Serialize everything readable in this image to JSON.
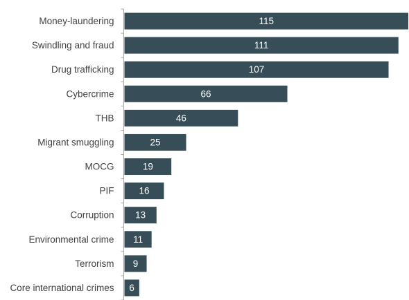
{
  "chart_data": {
    "type": "bar",
    "orientation": "horizontal",
    "categories": [
      "Money-laundering",
      "Swindling and fraud",
      "Drug trafficking",
      "Cybercrime",
      "THB",
      "Migrant smuggling",
      "MOCG",
      "PIF",
      "Corruption",
      "Environmental crime",
      "Terrorism",
      "Core international crimes"
    ],
    "values": [
      115,
      111,
      107,
      66,
      46,
      25,
      19,
      16,
      13,
      11,
      9,
      6
    ],
    "title": "",
    "xlabel": "",
    "ylabel": "",
    "xlim": [
      0,
      115
    ],
    "grid": false,
    "legend": "none",
    "bar_color": "#374e59",
    "data_label_color": "#ffffff",
    "category_label_color": "#404040",
    "axis_color": "#a6a6a6"
  }
}
